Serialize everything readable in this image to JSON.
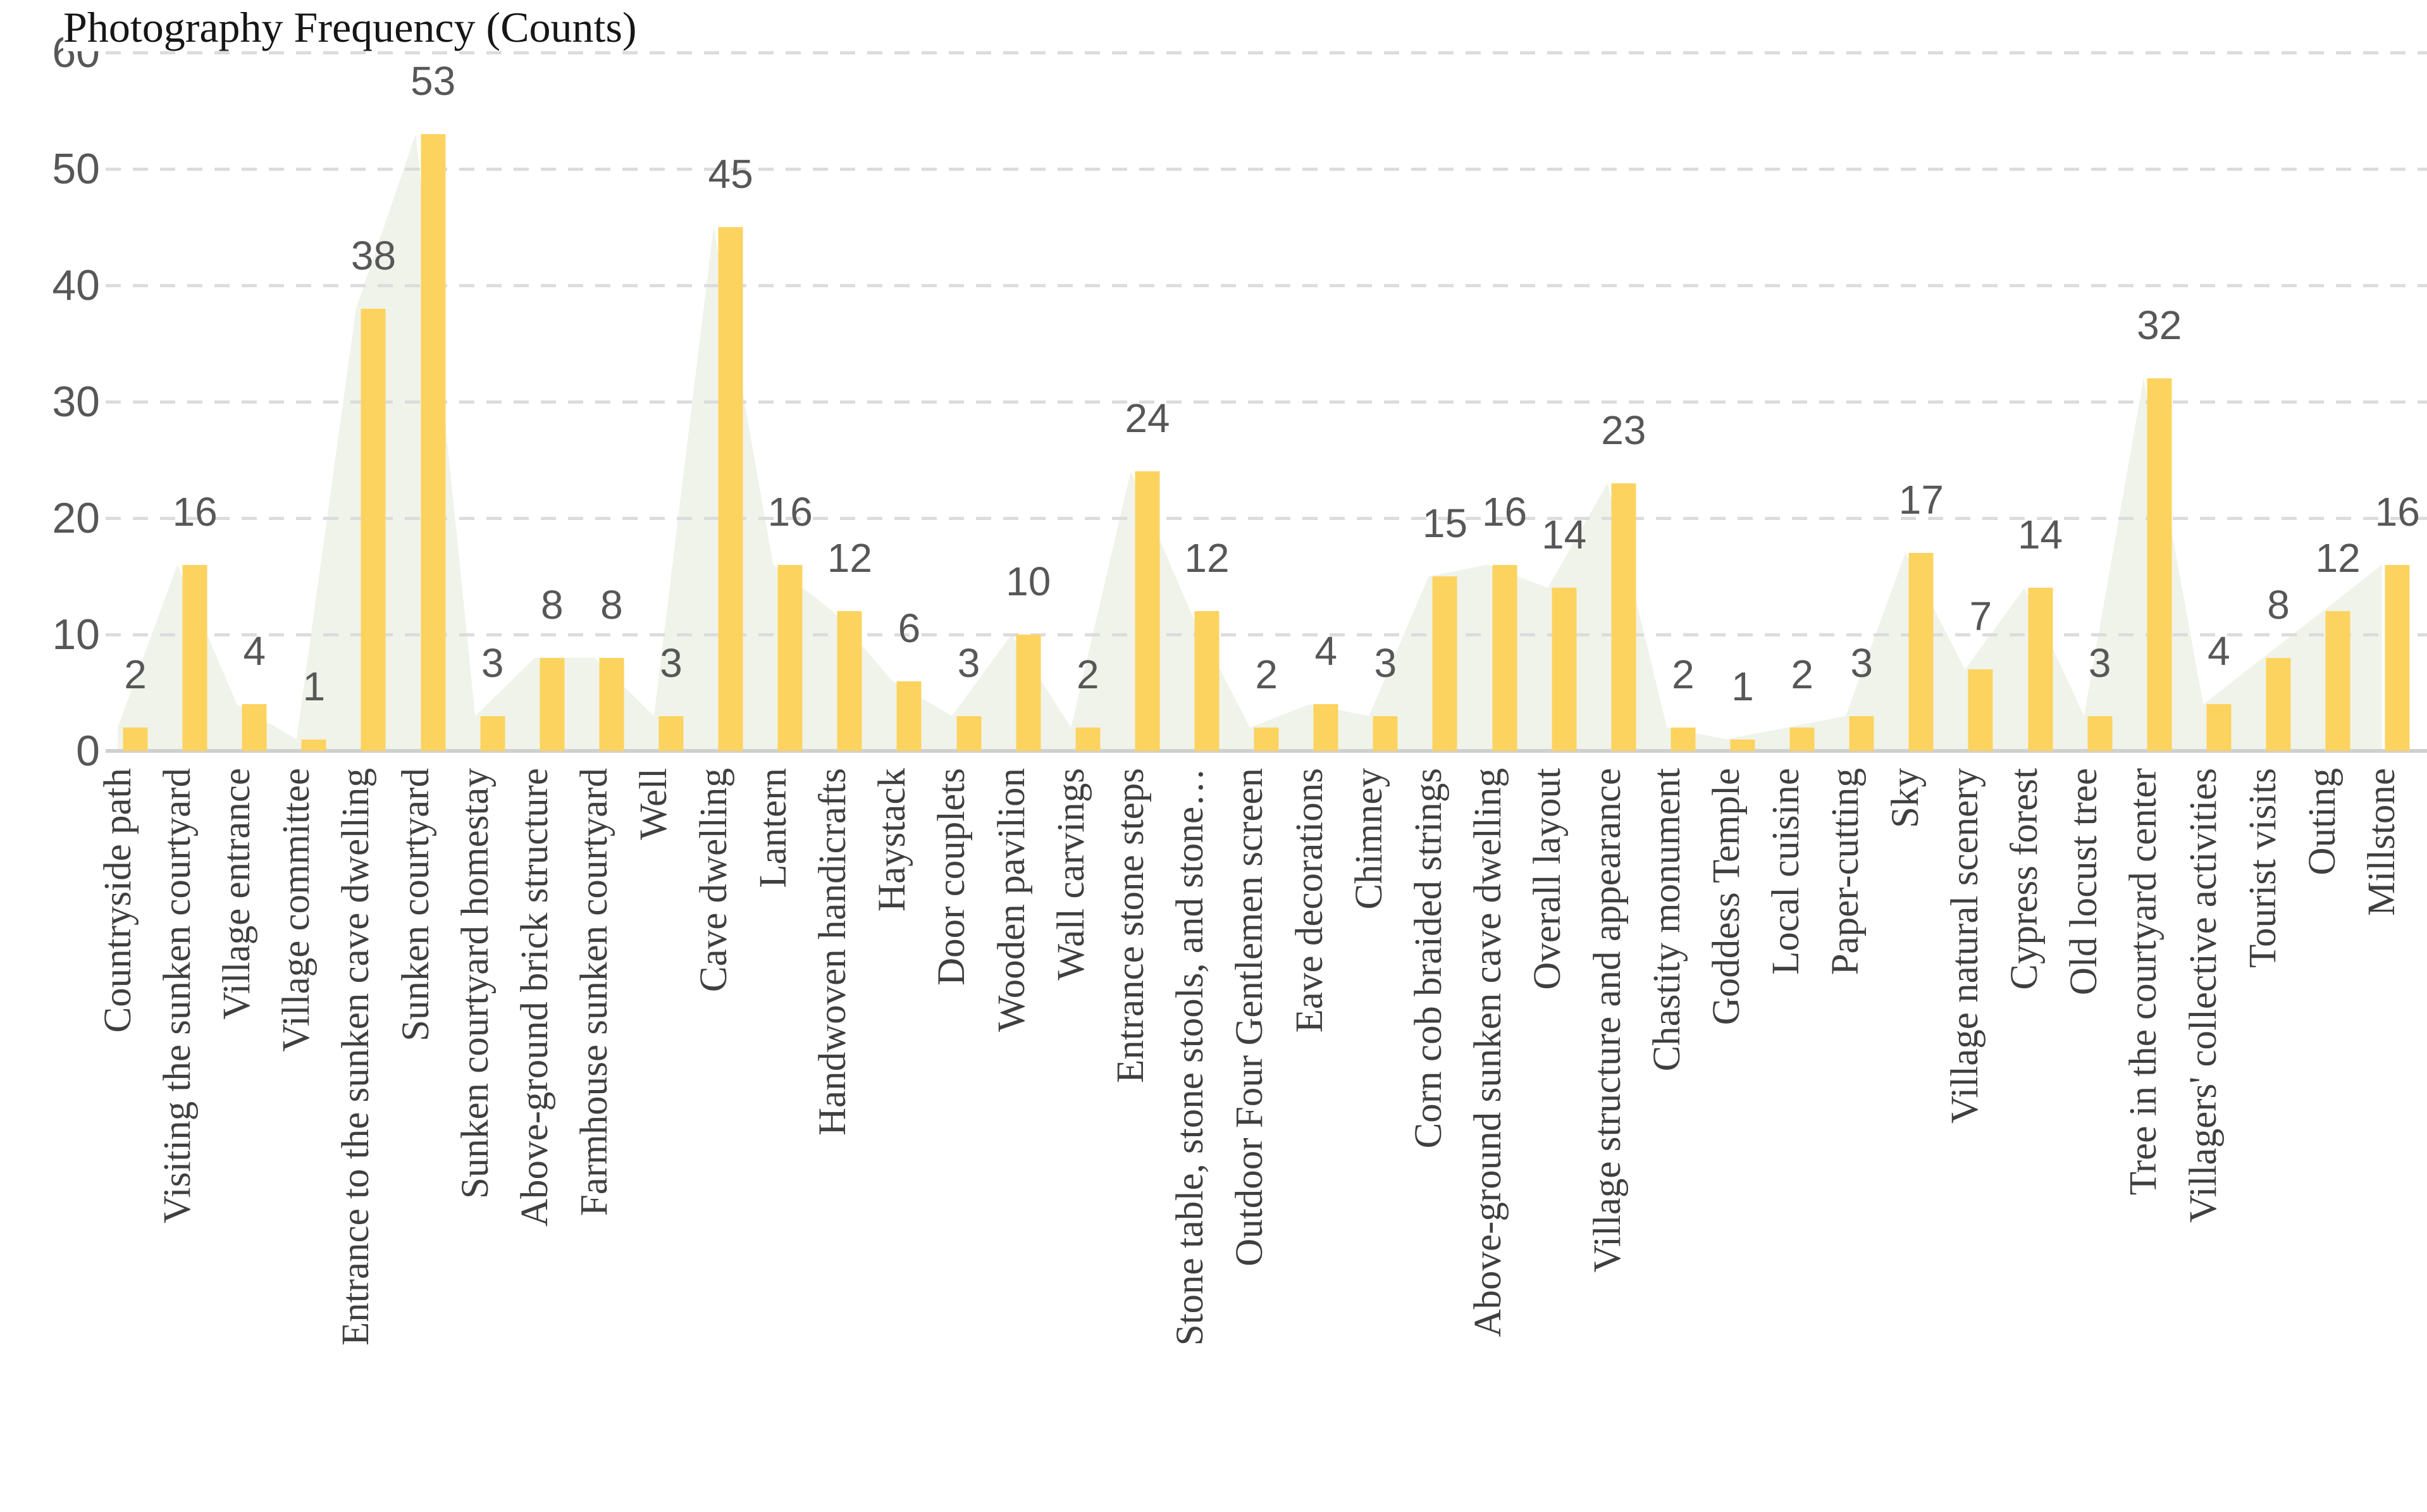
{
  "chart_data": {
    "type": "bar",
    "subtype": "column with matching light area series behind",
    "title": "Photography Frequency (Counts)",
    "categories": [
      "Countryside path",
      "Visiting the sunken courtyard",
      "Village entrance",
      "Village committee",
      "Entrance to the sunken cave dwelling",
      "Sunken courtyard",
      "Sunken courtyard homestay",
      "Above-ground brick structure",
      "Farmhouse sunken courtyard",
      "Well",
      "Cave dwelling",
      "Lantern",
      "Handwoven handicrafts",
      "Haystack",
      "Door couplets",
      "Wooden pavilion",
      "Wall carvings",
      "Entrance stone steps",
      "Stone table, stone stools, and stone…",
      "Outdoor Four Gentlemen screen",
      "Eave decorations",
      "Chimney",
      "Corn cob braided strings",
      "Above-ground sunken cave dwelling",
      "Overall layout",
      "Village structure and appearance",
      "Chastity monument",
      "Goddess Temple",
      "Local cuisine",
      "Paper-cutting",
      "Sky",
      "Village natural scenery",
      "Cypress forest",
      "Old locust tree",
      "Tree in the courtyard center",
      "Villagers' collective activities",
      "Tourist visits",
      "Outing",
      "Millstone"
    ],
    "values": [
      2,
      16,
      4,
      1,
      38,
      53,
      3,
      8,
      8,
      3,
      45,
      16,
      12,
      6,
      3,
      10,
      2,
      24,
      12,
      2,
      4,
      3,
      15,
      16,
      14,
      23,
      2,
      1,
      2,
      3,
      17,
      7,
      14,
      3,
      32,
      4,
      8,
      12,
      16
    ],
    "xlabel": "",
    "ylabel": "",
    "ylim": [
      0,
      60
    ],
    "yticks": [
      0,
      10,
      20,
      30,
      40,
      50,
      60
    ],
    "grid": "horizontal dashed gridlines, solid light baseline, no vertical axis line",
    "legend_position": "none",
    "colors": {
      "bar": "#fcd35f",
      "area_fill": "#eff3ea",
      "gridline": "#dcdcdc",
      "baseline": "#cfcfcf",
      "value_label": "#575757",
      "tick_label": "#575757",
      "category_label": "#3f3f3f",
      "title": "#161616",
      "background": "#ffffff"
    }
  }
}
